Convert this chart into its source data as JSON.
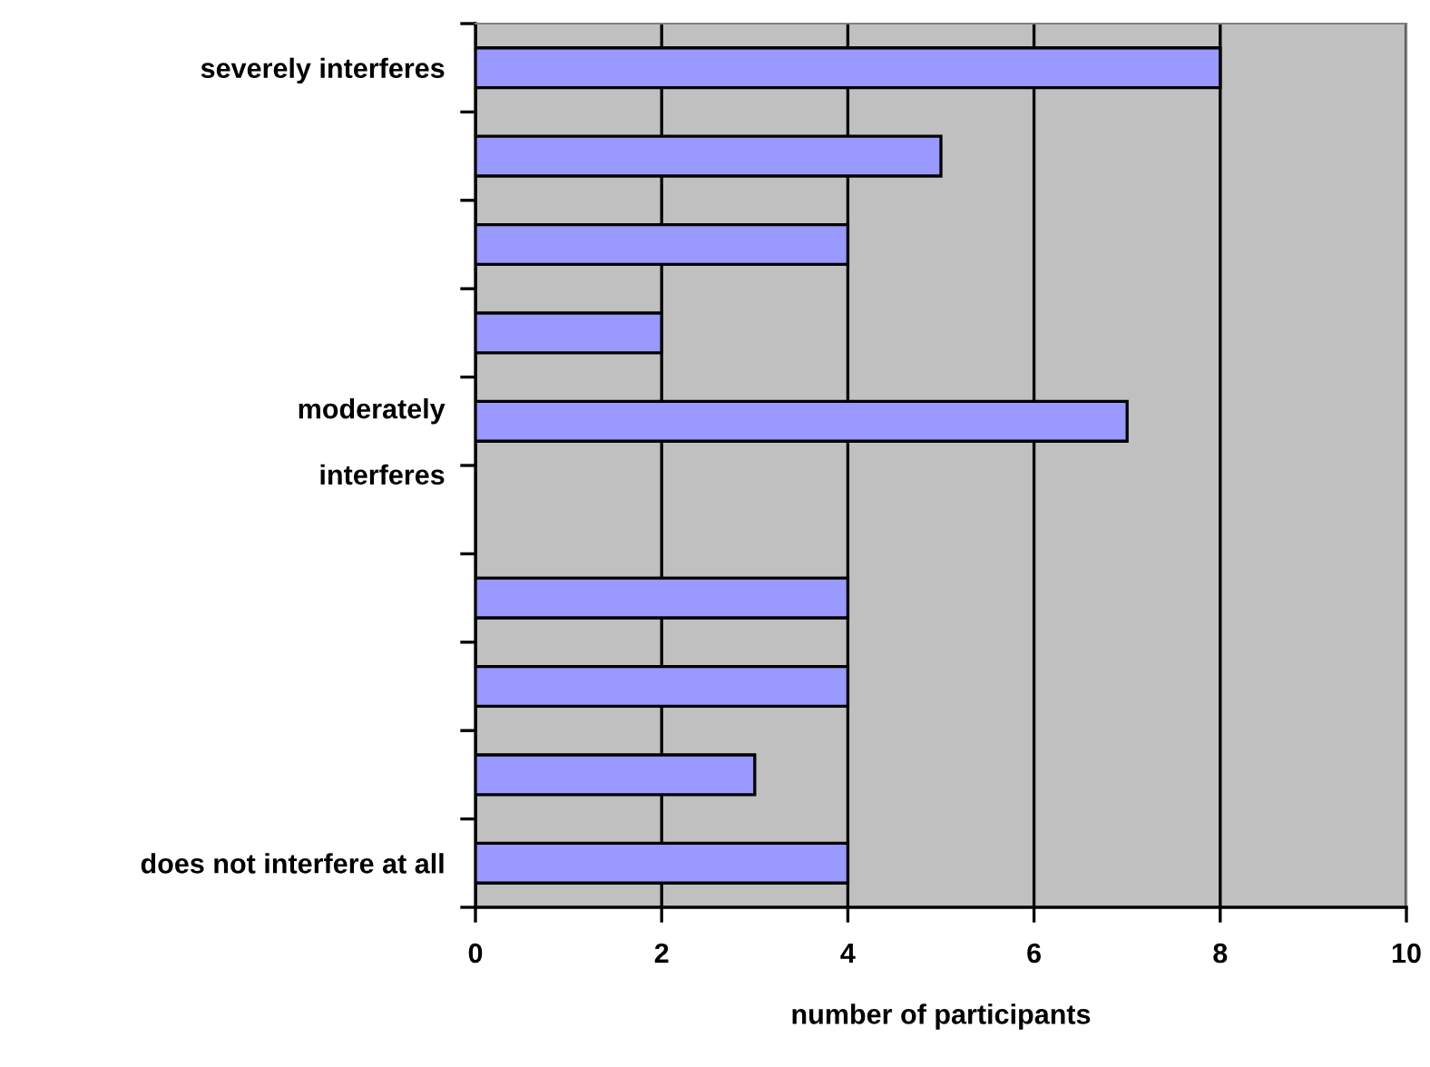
{
  "chart_data": {
    "type": "bar",
    "orientation": "horizontal",
    "xlabel": "number of participants",
    "categories": [
      "severely interferes",
      null,
      null,
      null,
      "moderately\ninterferes",
      null,
      null,
      null,
      null,
      "does not interfere at all"
    ],
    "values": [
      8,
      5,
      4,
      2,
      7,
      null,
      4,
      4,
      3,
      4
    ],
    "color": "#9999ff",
    "xlim": [
      0,
      10
    ],
    "xticks": [
      0,
      2,
      4,
      6,
      8,
      10
    ],
    "grid": "x",
    "legend": false
  }
}
